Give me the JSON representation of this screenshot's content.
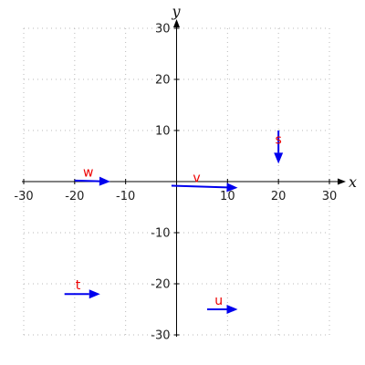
{
  "chart_data": {
    "type": "vector-field",
    "xlabel": "x",
    "ylabel": "y",
    "xlim": [
      -30,
      30
    ],
    "ylim": [
      -30,
      30
    ],
    "xticks": [
      -30,
      -20,
      -10,
      10,
      20,
      30
    ],
    "yticks": [
      -30,
      -20,
      -10,
      10,
      20,
      30
    ],
    "grid": true,
    "grid_style": "dotted",
    "arrow_color": "#0000ee",
    "label_color": "#ee0000",
    "vectors": [
      {
        "label": "w",
        "start": [
          -20,
          0.2
        ],
        "end": [
          -13,
          0
        ]
      },
      {
        "label": "v",
        "start": [
          -1,
          -0.8
        ],
        "end": [
          12,
          -1.2
        ]
      },
      {
        "label": "s",
        "start": [
          20,
          10
        ],
        "end": [
          20,
          3.5
        ]
      },
      {
        "label": "t",
        "start": [
          -22,
          -22
        ],
        "end": [
          -15,
          -22
        ]
      },
      {
        "label": "u",
        "start": [
          6,
          -25
        ],
        "end": [
          12,
          -25
        ]
      }
    ]
  }
}
